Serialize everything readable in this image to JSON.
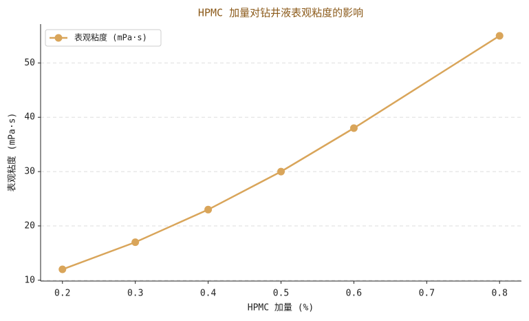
{
  "chart_data": {
    "type": "line",
    "title": "HPMC 加量对钻井液表观粘度的影响",
    "x_label": "HPMC 加量 (%)",
    "y_label": "表观粘度 (mPa·s)",
    "x": [
      0.2,
      0.3,
      0.4,
      0.5,
      0.6,
      0.8
    ],
    "series": [
      {
        "name": "表观粘度 (mPa·s)",
        "color": "#d9a55a",
        "values": [
          12,
          17,
          23,
          30,
          38,
          55
        ]
      }
    ],
    "xlim": [
      0.17,
      0.83
    ],
    "ylim": [
      9.85,
      57.15
    ],
    "xticks": [
      0.2,
      0.3,
      0.4,
      0.5,
      0.6,
      0.7,
      0.8
    ],
    "yticks": [
      10,
      20,
      30,
      40,
      50
    ],
    "grid": true,
    "legend": "upper-left"
  }
}
